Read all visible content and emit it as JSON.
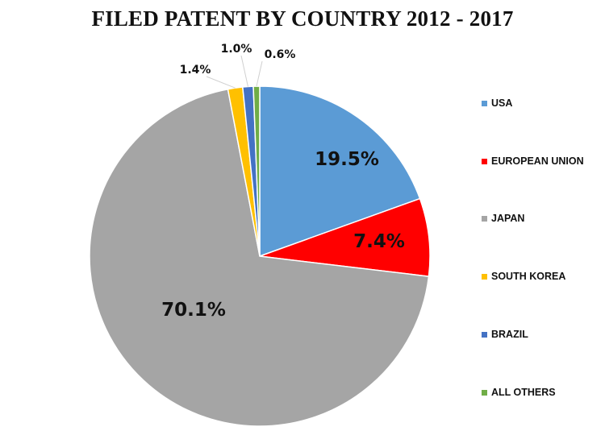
{
  "chart_data": {
    "type": "pie",
    "title": "FILED PATENT BY COUNTRY 2012 - 2017",
    "categories": [
      "USA",
      "EUROPEAN UNION",
      "JAPAN",
      "SOUTH KOREA",
      "BRAZIL",
      "ALL OTHERS"
    ],
    "values": [
      19.5,
      7.4,
      70.1,
      1.4,
      1.0,
      0.6
    ],
    "labels": [
      "19.5%",
      "7.4%",
      "70.1%",
      "1.4%",
      "1.0%",
      "0.6%"
    ],
    "colors": [
      "#5b9bd5",
      "#ff0000",
      "#a5a5a5",
      "#ffc000",
      "#4472c4",
      "#70ad47"
    ],
    "start_angle": "12 o'clock",
    "direction": "clockwise",
    "legend_position": "right"
  },
  "legend": {
    "items": [
      {
        "label": "USA",
        "color": "#5b9bd5"
      },
      {
        "label": "EUROPEAN UNION",
        "color": "#ff0000"
      },
      {
        "label": "JAPAN",
        "color": "#a5a5a5"
      },
      {
        "label": "SOUTH KOREA",
        "color": "#ffc000"
      },
      {
        "label": "BRAZIL",
        "color": "#4472c4"
      },
      {
        "label": "ALL OTHERS",
        "color": "#70ad47"
      }
    ]
  }
}
